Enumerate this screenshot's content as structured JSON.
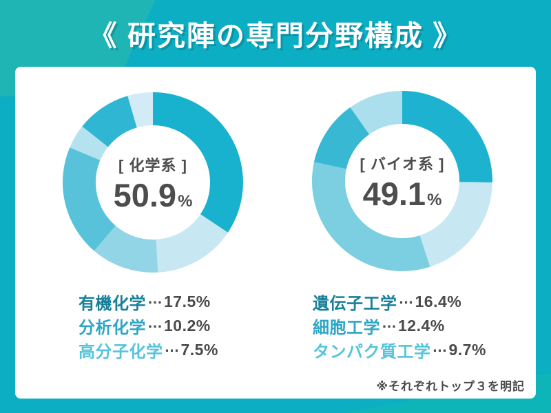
{
  "title": "《 研究陣の専門分野構成 》",
  "footnote": "※それぞれトップ３を明記",
  "colors": {
    "background": "#0caec3",
    "header_accent": "#1fb5b4",
    "corner_accent": "#0db4b8",
    "card": "#ffffff",
    "title_text": "#ffffff",
    "center_text": "#4d4d4d",
    "value_text": "#4a4a4a",
    "legend_rank_colors": [
      "#17809a",
      "#2ca6c3",
      "#55c4db"
    ]
  },
  "chart_data": [
    {
      "type": "pie",
      "variant": "donut",
      "category": "[ 化学系 ]",
      "total": "50.9",
      "unit": "%",
      "legend_position": "below-chart",
      "note": "segment values are % of all researchers; ring is scaled so the category total (50.9%) fills 360°, clockwise from top; only top 3 subfields are labeled",
      "segments": [
        {
          "label": "有機化学",
          "value": 17.5,
          "color": "#18b1ce"
        },
        {
          "label": "高分子化学",
          "value": 7.5,
          "color": "#c7e8f3"
        },
        {
          "label": null,
          "value": 6.2,
          "color": "#92d5e6"
        },
        {
          "label": "分析化学",
          "value": 10.2,
          "color": "#58c2da"
        },
        {
          "label": null,
          "value": 2.2,
          "color": "#b5e2ef"
        },
        {
          "label": null,
          "value": 5.0,
          "color": "#2fb6d2"
        },
        {
          "label": null,
          "value": 2.3,
          "color": "#d2ebf6"
        }
      ],
      "legend": [
        {
          "label": "有機化学",
          "value": "17.5%"
        },
        {
          "label": "分析化学",
          "value": "10.2%"
        },
        {
          "label": "高分子化学",
          "value": "7.5%"
        }
      ]
    },
    {
      "type": "pie",
      "variant": "donut",
      "category": "[ バイオ系 ]",
      "total": "49.1",
      "unit": "%",
      "legend_position": "below-chart",
      "note": "segment values are % of all researchers; ring is scaled so the category total (49.1%) fills 360°, clockwise from top; only top 3 subfields are labeled",
      "segments": [
        {
          "label": "細胞工学",
          "value": 12.4,
          "color": "#1db3d0"
        },
        {
          "label": "タンパク質工学",
          "value": 9.7,
          "color": "#c7e8f3"
        },
        {
          "label": "遺伝子工学",
          "value": 16.4,
          "color": "#7ccfe1"
        },
        {
          "label": null,
          "value": 5.8,
          "color": "#38b8d2"
        },
        {
          "label": null,
          "value": 4.8,
          "color": "#abdfee"
        }
      ],
      "legend": [
        {
          "label": "遺伝子工学",
          "value": "16.4%"
        },
        {
          "label": "細胞工学",
          "value": "12.4%"
        },
        {
          "label": "タンパク質工学",
          "value": "9.7%"
        }
      ]
    }
  ]
}
